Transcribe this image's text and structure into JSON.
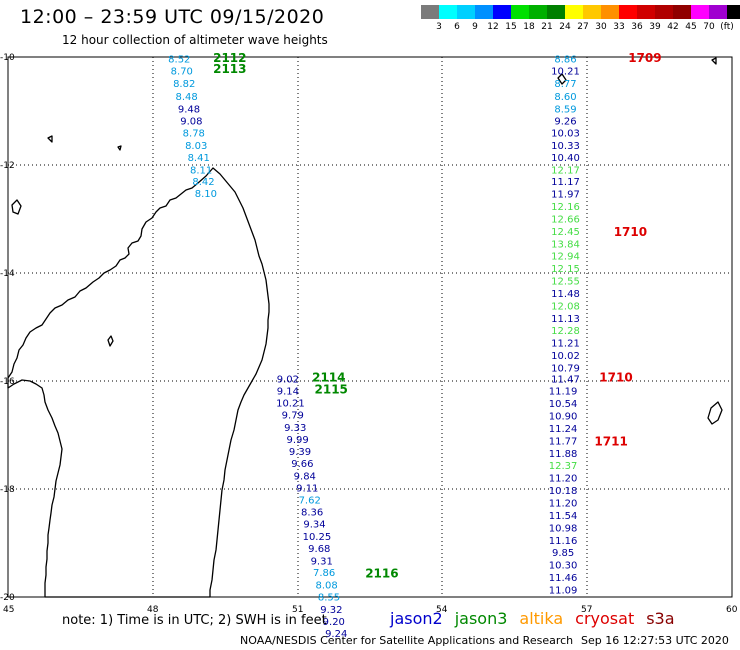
{
  "header": {
    "title": "12:00 – 23:59 UTC 09/15/2020",
    "subtitle": "12 hour collection of altimeter wave heights"
  },
  "legend": {
    "colors": [
      "#7b7b7b",
      "#00ffff",
      "#00d0ff",
      "#0090ff",
      "#0000ff",
      "#00e000",
      "#00b000",
      "#008000",
      "#ffff00",
      "#ffc800",
      "#ff9000",
      "#ff0000",
      "#d00000",
      "#b00000",
      "#900000",
      "#ff00ff",
      "#a000d0",
      "#000000"
    ],
    "ticks": [
      "3",
      "6",
      "9",
      "12",
      "15",
      "18",
      "21",
      "24",
      "27",
      "30",
      "33",
      "36",
      "39",
      "42",
      "45",
      "70",
      "(ft)"
    ]
  },
  "axes": {
    "x_ticks": [
      "45",
      "48",
      "51",
      "54",
      "57",
      "60"
    ],
    "y_ticks": [
      "-10",
      "-12",
      "-14",
      "-16",
      "-18",
      "-20"
    ]
  },
  "colors": {
    "jason2": "#0000cc",
    "jason3": "#008800",
    "altika": "#ff9900",
    "cryosat": "#dd0000",
    "s3a": "#880000",
    "wave_low": "#0099dd",
    "wave_green": "#44dd44",
    "wave_mid": "#000099"
  },
  "tracks": [
    {
      "name": "track-jason3-west",
      "points": [
        {
          "lon": 48.55,
          "lat": -10.03,
          "v": "8.52",
          "c": "wave_low"
        },
        {
          "lon": 48.6,
          "lat": -10.25,
          "v": "8.70",
          "c": "wave_low"
        },
        {
          "lon": 48.65,
          "lat": -10.48,
          "v": "8.82",
          "c": "wave_low"
        },
        {
          "lon": 48.7,
          "lat": -10.72,
          "v": "8.48",
          "c": "wave_low"
        },
        {
          "lon": 48.75,
          "lat": -10.95,
          "v": "9.48",
          "c": "wave_mid"
        },
        {
          "lon": 48.8,
          "lat": -11.18,
          "v": "9.08",
          "c": "wave_mid"
        },
        {
          "lon": 48.85,
          "lat": -11.4,
          "v": "8.78",
          "c": "wave_low"
        },
        {
          "lon": 48.9,
          "lat": -11.63,
          "v": "8.03",
          "c": "wave_low"
        },
        {
          "lon": 48.95,
          "lat": -11.85,
          "v": "8.41",
          "c": "wave_low"
        },
        {
          "lon": 49.0,
          "lat": -12.08,
          "v": "8.11",
          "c": "wave_low"
        },
        {
          "lon": 49.05,
          "lat": -12.3,
          "v": "8.42",
          "c": "wave_low"
        },
        {
          "lon": 49.1,
          "lat": -12.52,
          "v": "8.10",
          "c": "wave_low"
        }
      ]
    },
    {
      "name": "track-jason3-south",
      "points": [
        {
          "lon": 50.8,
          "lat": -15.95,
          "v": "9.02",
          "c": "wave_mid"
        },
        {
          "lon": 50.8,
          "lat": -16.18,
          "v": "9.14",
          "c": "wave_mid"
        },
        {
          "lon": 50.85,
          "lat": -16.4,
          "v": "10.21",
          "c": "wave_mid"
        },
        {
          "lon": 50.9,
          "lat": -16.62,
          "v": "9.79",
          "c": "wave_mid"
        },
        {
          "lon": 50.95,
          "lat": -16.85,
          "v": "9.33",
          "c": "wave_mid"
        },
        {
          "lon": 51.0,
          "lat": -17.07,
          "v": "9.99",
          "c": "wave_mid"
        },
        {
          "lon": 51.05,
          "lat": -17.3,
          "v": "9.39",
          "c": "wave_mid"
        },
        {
          "lon": 51.1,
          "lat": -17.52,
          "v": "9.66",
          "c": "wave_mid"
        },
        {
          "lon": 51.15,
          "lat": -17.75,
          "v": "9.84",
          "c": "wave_mid"
        },
        {
          "lon": 51.2,
          "lat": -17.97,
          "v": "9.11",
          "c": "wave_mid"
        },
        {
          "lon": 51.25,
          "lat": -18.19,
          "v": "7.62",
          "c": "wave_low"
        },
        {
          "lon": 51.3,
          "lat": -18.42,
          "v": "8.36",
          "c": "wave_mid"
        },
        {
          "lon": 51.35,
          "lat": -18.64,
          "v": "9.34",
          "c": "wave_mid"
        },
        {
          "lon": 51.4,
          "lat": -18.87,
          "v": "10.25",
          "c": "wave_mid"
        },
        {
          "lon": 51.45,
          "lat": -19.09,
          "v": "9.68",
          "c": "wave_mid"
        },
        {
          "lon": 51.5,
          "lat": -19.32,
          "v": "9.31",
          "c": "wave_mid"
        },
        {
          "lon": 51.55,
          "lat": -19.54,
          "v": "7.86",
          "c": "wave_low"
        },
        {
          "lon": 51.6,
          "lat": -19.77,
          "v": "8.08",
          "c": "wave_low"
        },
        {
          "lon": 51.65,
          "lat": -19.99,
          "v": "8.55",
          "c": "wave_low"
        },
        {
          "lon": 51.7,
          "lat": -20.22,
          "v": "9.32",
          "c": "wave_mid"
        },
        {
          "lon": 51.75,
          "lat": -20.44,
          "v": "9.20",
          "c": "wave_mid"
        },
        {
          "lon": 51.8,
          "lat": -20.67,
          "v": "9.24",
          "c": "wave_mid"
        }
      ]
    },
    {
      "name": "track-cryosat-east",
      "points": [
        {
          "lon": 56.55,
          "lat": -10.03,
          "v": "8.86",
          "c": "wave_low"
        },
        {
          "lon": 56.55,
          "lat": -10.25,
          "v": "10.21",
          "c": "wave_mid"
        },
        {
          "lon": 56.55,
          "lat": -10.48,
          "v": "8.77",
          "c": "wave_low"
        },
        {
          "lon": 56.55,
          "lat": -10.72,
          "v": "8.60",
          "c": "wave_low"
        },
        {
          "lon": 56.55,
          "lat": -10.95,
          "v": "8.59",
          "c": "wave_low"
        },
        {
          "lon": 56.55,
          "lat": -11.18,
          "v": "9.26",
          "c": "wave_mid"
        },
        {
          "lon": 56.55,
          "lat": -11.4,
          "v": "10.03",
          "c": "wave_mid"
        },
        {
          "lon": 56.55,
          "lat": -11.63,
          "v": "10.33",
          "c": "wave_mid"
        },
        {
          "lon": 56.55,
          "lat": -11.85,
          "v": "10.40",
          "c": "wave_mid"
        },
        {
          "lon": 56.55,
          "lat": -12.08,
          "v": "12.17",
          "c": "wave_green"
        },
        {
          "lon": 56.55,
          "lat": -12.3,
          "v": "11.17",
          "c": "wave_mid"
        },
        {
          "lon": 56.55,
          "lat": -12.53,
          "v": "11.97",
          "c": "wave_mid"
        },
        {
          "lon": 56.55,
          "lat": -12.76,
          "v": "12.16",
          "c": "wave_green"
        },
        {
          "lon": 56.55,
          "lat": -12.99,
          "v": "12.66",
          "c": "wave_green"
        },
        {
          "lon": 56.55,
          "lat": -13.22,
          "v": "12.45",
          "c": "wave_green"
        },
        {
          "lon": 56.55,
          "lat": -13.45,
          "v": "13.84",
          "c": "wave_green"
        },
        {
          "lon": 56.55,
          "lat": -13.68,
          "v": "12.94",
          "c": "wave_green"
        },
        {
          "lon": 56.55,
          "lat": -13.91,
          "v": "12.15",
          "c": "wave_green"
        },
        {
          "lon": 56.55,
          "lat": -14.14,
          "v": "12.55",
          "c": "wave_green"
        },
        {
          "lon": 56.55,
          "lat": -14.37,
          "v": "11.48",
          "c": "wave_mid"
        },
        {
          "lon": 56.55,
          "lat": -14.6,
          "v": "12.08",
          "c": "wave_green"
        },
        {
          "lon": 56.55,
          "lat": -14.83,
          "v": "11.13",
          "c": "wave_mid"
        },
        {
          "lon": 56.55,
          "lat": -15.06,
          "v": "12.28",
          "c": "wave_green"
        },
        {
          "lon": 56.55,
          "lat": -15.29,
          "v": "11.21",
          "c": "wave_mid"
        },
        {
          "lon": 56.55,
          "lat": -15.52,
          "v": "10.02",
          "c": "wave_mid"
        },
        {
          "lon": 56.55,
          "lat": -15.75,
          "v": "10.79",
          "c": "wave_mid"
        },
        {
          "lon": 56.55,
          "lat": -15.95,
          "v": "11.47",
          "c": "wave_mid"
        },
        {
          "lon": 56.5,
          "lat": -16.18,
          "v": "11.19",
          "c": "wave_mid"
        },
        {
          "lon": 56.5,
          "lat": -16.41,
          "v": "10.54",
          "c": "wave_mid"
        },
        {
          "lon": 56.5,
          "lat": -16.64,
          "v": "10.90",
          "c": "wave_mid"
        },
        {
          "lon": 56.5,
          "lat": -16.87,
          "v": "11.24",
          "c": "wave_mid"
        },
        {
          "lon": 56.5,
          "lat": -17.1,
          "v": "11.77",
          "c": "wave_mid"
        },
        {
          "lon": 56.5,
          "lat": -17.33,
          "v": "11.88",
          "c": "wave_mid"
        },
        {
          "lon": 56.5,
          "lat": -17.56,
          "v": "12.37",
          "c": "wave_green"
        },
        {
          "lon": 56.5,
          "lat": -17.79,
          "v": "11.20",
          "c": "wave_mid"
        },
        {
          "lon": 56.5,
          "lat": -18.02,
          "v": "10.18",
          "c": "wave_mid"
        },
        {
          "lon": 56.5,
          "lat": -18.25,
          "v": "11.20",
          "c": "wave_mid"
        },
        {
          "lon": 56.5,
          "lat": -18.48,
          "v": "11.54",
          "c": "wave_mid"
        },
        {
          "lon": 56.5,
          "lat": -18.71,
          "v": "10.98",
          "c": "wave_mid"
        },
        {
          "lon": 56.5,
          "lat": -18.94,
          "v": "11.16",
          "c": "wave_mid"
        },
        {
          "lon": 56.5,
          "lat": -19.17,
          "v": "9.85",
          "c": "wave_mid"
        },
        {
          "lon": 56.5,
          "lat": -19.4,
          "v": "10.30",
          "c": "wave_mid"
        },
        {
          "lon": 56.5,
          "lat": -19.63,
          "v": "11.46",
          "c": "wave_mid"
        },
        {
          "lon": 56.5,
          "lat": -19.86,
          "v": "11.09",
          "c": "wave_mid"
        }
      ]
    }
  ],
  "pass_labels": [
    {
      "text": "2112",
      "lon": 49.25,
      "lat": -10.0,
      "c": "jason3"
    },
    {
      "text": "2113",
      "lon": 49.25,
      "lat": -10.2,
      "c": "jason3"
    },
    {
      "text": "2114",
      "lon": 51.3,
      "lat": -15.92,
      "c": "jason3"
    },
    {
      "text": "2115",
      "lon": 51.35,
      "lat": -16.14,
      "c": "jason3"
    },
    {
      "text": "2116",
      "lon": 52.4,
      "lat": -19.55,
      "c": "jason3"
    },
    {
      "text": "1709",
      "lon": 57.85,
      "lat": -10.0,
      "c": "cryosat"
    },
    {
      "text": "1710",
      "lon": 57.55,
      "lat": -13.22,
      "c": "cryosat"
    },
    {
      "text": "1710",
      "lon": 57.25,
      "lat": -15.92,
      "c": "cryosat"
    },
    {
      "text": "1711",
      "lon": 57.15,
      "lat": -17.1,
      "c": "cryosat"
    }
  ],
  "footer": {
    "note": "note: 1) Time is in UTC; 2) SWH is in feet",
    "satellites": [
      {
        "name": "jason2",
        "c": "jason2"
      },
      {
        "name": "jason3",
        "c": "jason3"
      },
      {
        "name": "altika",
        "c": "altika"
      },
      {
        "name": "cryosat",
        "c": "cryosat"
      },
      {
        "name": "s3a",
        "c": "s3a"
      }
    ],
    "credit": "NOAA/NESDIS Center for Satellite Applications and Research",
    "timestamp": "Sep 16 12:27:53 UTC 2020"
  }
}
